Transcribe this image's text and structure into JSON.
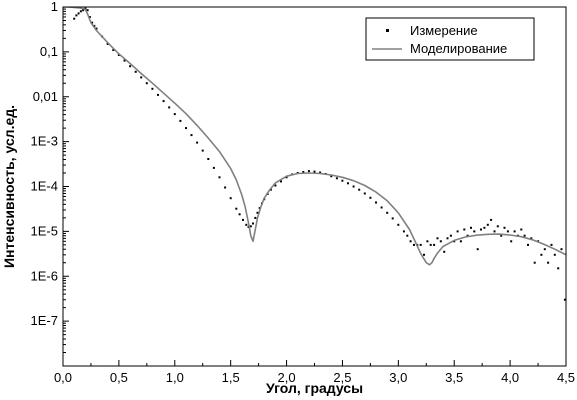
{
  "chart_data": {
    "type": "scatter",
    "title": "",
    "xlabel": "Угол, градусы",
    "ylabel": "Интенсивность, усл.ед.",
    "xlim": [
      0.0,
      4.5
    ],
    "ylim": [
      1e-08,
      1
    ],
    "y_scale": "log",
    "grid": false,
    "legend_position": "top-right",
    "x_tick_labels": [
      "0,0",
      "0,5",
      "1,0",
      "1,5",
      "2,0",
      "2,5",
      "3,0",
      "3,5",
      "4,0",
      "4,5"
    ],
    "y_tick_labels": [
      "1",
      "0,1",
      "0,01",
      "1E-3",
      "1E-4",
      "1E-5",
      "1E-6",
      "1E-7"
    ],
    "series": [
      {
        "name": "Измерение",
        "kind": "points",
        "color": "#000000",
        "x": [
          0.1,
          0.12,
          0.14,
          0.16,
          0.18,
          0.2,
          0.22,
          0.24,
          0.26,
          0.28,
          0.3,
          0.35,
          0.4,
          0.45,
          0.5,
          0.55,
          0.6,
          0.65,
          0.7,
          0.75,
          0.8,
          0.85,
          0.9,
          0.95,
          1.0,
          1.05,
          1.1,
          1.15,
          1.2,
          1.25,
          1.3,
          1.35,
          1.4,
          1.45,
          1.5,
          1.55,
          1.58,
          1.61,
          1.64,
          1.66,
          1.68,
          1.7,
          1.72,
          1.74,
          1.76,
          1.78,
          1.8,
          1.83,
          1.86,
          1.9,
          1.95,
          2.0,
          2.05,
          2.1,
          2.15,
          2.2,
          2.25,
          2.3,
          2.35,
          2.4,
          2.45,
          2.5,
          2.55,
          2.6,
          2.65,
          2.7,
          2.75,
          2.8,
          2.85,
          2.9,
          2.95,
          3.0,
          3.05,
          3.08,
          3.11,
          3.14,
          3.17,
          3.2,
          3.23,
          3.26,
          3.29,
          3.32,
          3.35,
          3.38,
          3.41,
          3.44,
          3.47,
          3.5,
          3.53,
          3.56,
          3.59,
          3.62,
          3.65,
          3.68,
          3.71,
          3.74,
          3.77,
          3.8,
          3.83,
          3.86,
          3.89,
          3.92,
          3.95,
          3.98,
          4.01,
          4.04,
          4.07,
          4.1,
          4.13,
          4.16,
          4.19,
          4.22,
          4.25,
          4.28,
          4.31,
          4.34,
          4.37,
          4.4,
          4.43,
          4.46,
          4.49
        ],
        "y": [
          0.55,
          0.65,
          0.72,
          0.8,
          0.85,
          0.92,
          0.85,
          0.6,
          0.45,
          0.38,
          0.33,
          0.22,
          0.15,
          0.11,
          0.085,
          0.064,
          0.048,
          0.036,
          0.027,
          0.02,
          0.015,
          0.011,
          0.008,
          0.0058,
          0.0041,
          0.0029,
          0.002,
          0.0014,
          0.00095,
          0.00063,
          0.00041,
          0.00026,
          0.00016,
          9.5e-05,
          5.5e-05,
          3.2e-05,
          2.4e-05,
          1.8e-05,
          1.4e-05,
          1.25e-05,
          1.3e-05,
          1.5e-05,
          2e-05,
          2.6e-05,
          3.3e-05,
          4.2e-05,
          5.2e-05,
          6.8e-05,
          8.5e-05,
          0.000105,
          0.00013,
          0.00016,
          0.000185,
          0.0002,
          0.00021,
          0.00022,
          0.000215,
          0.000205,
          0.00019,
          0.00017,
          0.000152,
          0.000135,
          0.000118,
          0.0001,
          8.5e-05,
          7e-05,
          5.6e-05,
          4.4e-05,
          3.4e-05,
          2.6e-05,
          1.95e-05,
          1.4e-05,
          1e-05,
          8e-06,
          6e-06,
          5e-06,
          5e-06,
          5e-06,
          3e-06,
          6e-06,
          5e-06,
          5e-06,
          7e-06,
          6e-06,
          3.5e-06,
          7e-06,
          8e-06,
          6e-06,
          1e-05,
          6e-06,
          1.1e-05,
          8e-06,
          1.2e-05,
          1e-05,
          4e-06,
          1.1e-05,
          1.2e-05,
          1.4e-05,
          1.8e-05,
          1e-05,
          1.3e-05,
          8e-06,
          1.2e-05,
          1e-05,
          6e-06,
          1e-05,
          8e-06,
          1.1e-05,
          8e-06,
          5e-06,
          7e-06,
          2e-06,
          6e-06,
          3e-06,
          4e-06,
          2e-06,
          5e-06,
          3e-06,
          1.5e-06,
          4e-06,
          3e-07
        ]
      },
      {
        "name": "Моделирование",
        "kind": "line",
        "color": "#808080",
        "x": [
          0.0,
          0.05,
          0.1,
          0.15,
          0.18,
          0.2,
          0.22,
          0.25,
          0.3,
          0.4,
          0.5,
          0.6,
          0.7,
          0.8,
          0.9,
          1.0,
          1.1,
          1.2,
          1.3,
          1.4,
          1.5,
          1.55,
          1.6,
          1.63,
          1.66,
          1.68,
          1.7,
          1.72,
          1.74,
          1.77,
          1.8,
          1.85,
          1.9,
          2.0,
          2.1,
          2.2,
          2.3,
          2.4,
          2.5,
          2.6,
          2.7,
          2.8,
          2.9,
          3.0,
          3.1,
          3.15,
          3.2,
          3.25,
          3.28,
          3.3,
          3.32,
          3.35,
          3.4,
          3.5,
          3.6,
          3.7,
          3.8,
          3.9,
          4.0,
          4.1,
          4.2,
          4.3,
          4.4,
          4.5
        ],
        "y": [
          1.0,
          1.0,
          0.98,
          0.95,
          0.92,
          0.88,
          0.7,
          0.45,
          0.3,
          0.16,
          0.09,
          0.055,
          0.033,
          0.02,
          0.012,
          0.0072,
          0.0042,
          0.0023,
          0.0012,
          0.0006,
          0.00025,
          0.00014,
          6.5e-05,
          3.5e-05,
          1.5e-05,
          8e-06,
          6e-06,
          1.1e-05,
          2e-05,
          3.5e-05,
          5.5e-05,
          8.5e-05,
          0.00012,
          0.00017,
          0.000195,
          0.0002,
          0.000195,
          0.00018,
          0.00016,
          0.000135,
          0.000105,
          7.5e-05,
          4.8e-05,
          2.6e-05,
          1.1e-05,
          6e-06,
          3.2e-06,
          2e-06,
          1.8e-06,
          2e-06,
          2.5e-06,
          3.3e-06,
          4.6e-06,
          6.3e-06,
          7.5e-06,
          8.2e-06,
          8.6e-06,
          8.7e-06,
          8.3e-06,
          7.6e-06,
          6.5e-06,
          5.2e-06,
          4e-06,
          3e-06
        ]
      }
    ]
  }
}
